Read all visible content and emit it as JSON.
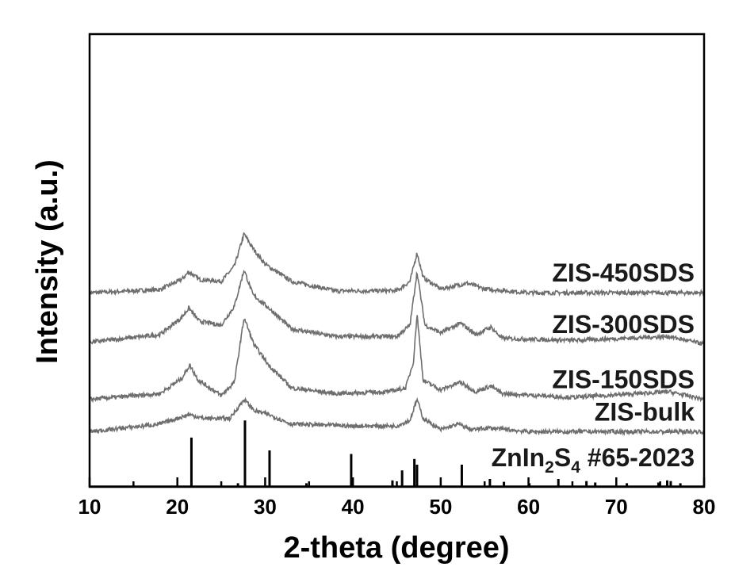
{
  "chart_data": {
    "type": "line",
    "xlabel": "2-theta (degree)",
    "ylabel": "Intensity (a.u.)",
    "xlim": [
      10,
      80
    ],
    "xticks": [
      10,
      20,
      30,
      40,
      50,
      60,
      70,
      80
    ],
    "grid": false,
    "colors": {
      "series": "#6e6e6e",
      "reference": "#000000",
      "axis": "#000000"
    },
    "series": [
      {
        "name": "ZIS-450SDS",
        "offset": 4.1,
        "points": [
          [
            10,
            0.0
          ],
          [
            18,
            0.08
          ],
          [
            20.5,
            0.35
          ],
          [
            21.3,
            0.55
          ],
          [
            22.5,
            0.35
          ],
          [
            25,
            0.3
          ],
          [
            26.5,
            0.7
          ],
          [
            27.6,
            1.55
          ],
          [
            28.5,
            1.2
          ],
          [
            30,
            0.75
          ],
          [
            33,
            0.3
          ],
          [
            38,
            0.05
          ],
          [
            45,
            0.05
          ],
          [
            46.5,
            0.3
          ],
          [
            47.3,
            1.05
          ],
          [
            48,
            0.4
          ],
          [
            50,
            0.1
          ],
          [
            53,
            0.25
          ],
          [
            55,
            0.1
          ],
          [
            60,
            0.0
          ],
          [
            80,
            0.0
          ]
        ]
      },
      {
        "name": "ZIS-300SDS",
        "offset": 2.75,
        "points": [
          [
            10,
            0.05
          ],
          [
            18,
            0.25
          ],
          [
            20.5,
            0.7
          ],
          [
            21.3,
            0.95
          ],
          [
            22.5,
            0.6
          ],
          [
            25,
            0.5
          ],
          [
            26.5,
            1.0
          ],
          [
            27.6,
            1.95
          ],
          [
            28.6,
            1.3
          ],
          [
            30.4,
            0.95
          ],
          [
            33,
            0.4
          ],
          [
            38,
            0.2
          ],
          [
            45,
            0.2
          ],
          [
            46.5,
            0.5
          ],
          [
            47.3,
            1.9
          ],
          [
            48.2,
            0.5
          ],
          [
            50,
            0.3
          ],
          [
            52.3,
            0.55
          ],
          [
            54,
            0.25
          ],
          [
            55.7,
            0.45
          ],
          [
            57,
            0.15
          ],
          [
            65,
            0.1
          ],
          [
            76,
            0.2
          ],
          [
            80,
            0.0
          ]
        ]
      },
      {
        "name": "ZIS-150SDS",
        "offset": 1.3,
        "points": [
          [
            10,
            0.0
          ],
          [
            18,
            0.15
          ],
          [
            20.5,
            0.55
          ],
          [
            21.4,
            0.9
          ],
          [
            22.4,
            0.5
          ],
          [
            25,
            0.1
          ],
          [
            26.5,
            0.45
          ],
          [
            27.6,
            2.15
          ],
          [
            28.7,
            1.45
          ],
          [
            30.4,
            0.9
          ],
          [
            33,
            0.3
          ],
          [
            38,
            0.15
          ],
          [
            44,
            0.2
          ],
          [
            46,
            0.3
          ],
          [
            46.9,
            1.0
          ],
          [
            47.3,
            2.25
          ],
          [
            48,
            0.5
          ],
          [
            50,
            0.25
          ],
          [
            52.2,
            0.45
          ],
          [
            54,
            0.2
          ],
          [
            55.7,
            0.35
          ],
          [
            57,
            0.15
          ],
          [
            65,
            0.05
          ],
          [
            76,
            0.2
          ],
          [
            80,
            0.0
          ]
        ]
      },
      {
        "name": "ZIS-bulk",
        "offset": 0.45,
        "points": [
          [
            10,
            0.0
          ],
          [
            18,
            0.2
          ],
          [
            21.3,
            0.45
          ],
          [
            23,
            0.35
          ],
          [
            26,
            0.35
          ],
          [
            27.6,
            0.85
          ],
          [
            28.8,
            0.55
          ],
          [
            30.4,
            0.45
          ],
          [
            33,
            0.2
          ],
          [
            40,
            0.15
          ],
          [
            45,
            0.15
          ],
          [
            46.5,
            0.3
          ],
          [
            47.3,
            0.85
          ],
          [
            48,
            0.35
          ],
          [
            50,
            0.05
          ],
          [
            52,
            0.2
          ],
          [
            53.5,
            0.05
          ],
          [
            55.5,
            0.1
          ],
          [
            60,
            0.0
          ],
          [
            80,
            0.0
          ]
        ]
      }
    ],
    "reference": {
      "label": "ZnIn",
      "label_sub1": "2",
      "label_mid": "S",
      "label_sub2": "4",
      "label_tail": " #65-2023",
      "peaks": [
        [
          21.6,
          0.68
        ],
        [
          26.9,
          0.04
        ],
        [
          27.7,
          0.92
        ],
        [
          30.5,
          0.5
        ],
        [
          34.7,
          0.04
        ],
        [
          39.8,
          0.45
        ],
        [
          44.5,
          0.08
        ],
        [
          45.6,
          0.22
        ],
        [
          47.0,
          0.38
        ],
        [
          47.3,
          0.3
        ],
        [
          52.4,
          0.3
        ],
        [
          55.6,
          0.1
        ],
        [
          57.2,
          0.06
        ],
        [
          60.1,
          0.04
        ],
        [
          63.4,
          0.1
        ],
        [
          66.6,
          0.07
        ],
        [
          67.6,
          0.05
        ],
        [
          71.2,
          0.04
        ],
        [
          74.8,
          0.05
        ],
        [
          75.8,
          0.08
        ],
        [
          76.2,
          0.07
        ],
        [
          77.3,
          0.04
        ]
      ]
    }
  }
}
